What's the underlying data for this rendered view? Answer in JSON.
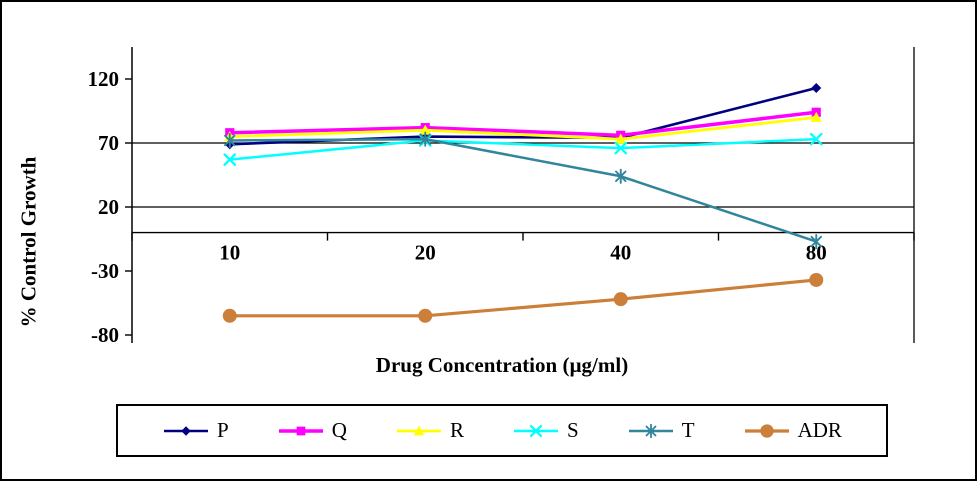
{
  "chart_data": {
    "type": "line",
    "title": "",
    "xlabel": "Drug Concentration (µg/ml)",
    "ylabel": "% Control Growth",
    "categories": [
      "10",
      "20",
      "40",
      "80"
    ],
    "y_ticks": [
      120,
      70,
      20,
      -30,
      -80
    ],
    "ylim": [
      -90,
      145
    ],
    "grid_values": [
      70,
      20
    ],
    "axis_cross_value": 0,
    "grid": "horizontal-partial",
    "legend_position": "bottom",
    "series": [
      {
        "name": "P",
        "color": "#000080",
        "marker": "diamond",
        "line_width": 2.6,
        "values": [
          69,
          75,
          74,
          113
        ]
      },
      {
        "name": "Q",
        "color": "#FF00FF",
        "marker": "square",
        "line_width": 3.5,
        "values": [
          78,
          82,
          76,
          94
        ]
      },
      {
        "name": "R",
        "color": "#FFFF00",
        "marker": "triangle",
        "line_width": 2.8,
        "values": [
          75,
          80,
          73,
          90
        ]
      },
      {
        "name": "S",
        "color": "#00FFFF",
        "marker": "x",
        "line_width": 2.5,
        "values": [
          57,
          72,
          66,
          73
        ]
      },
      {
        "name": "T",
        "color": "#31859C",
        "marker": "asterisk",
        "line_width": 2.5,
        "values": [
          72,
          73,
          44,
          -7
        ]
      },
      {
        "name": "ADR",
        "color": "#CC7F39",
        "marker": "circle",
        "line_width": 3.2,
        "values": [
          -65,
          -65,
          -52,
          -37
        ]
      }
    ]
  }
}
